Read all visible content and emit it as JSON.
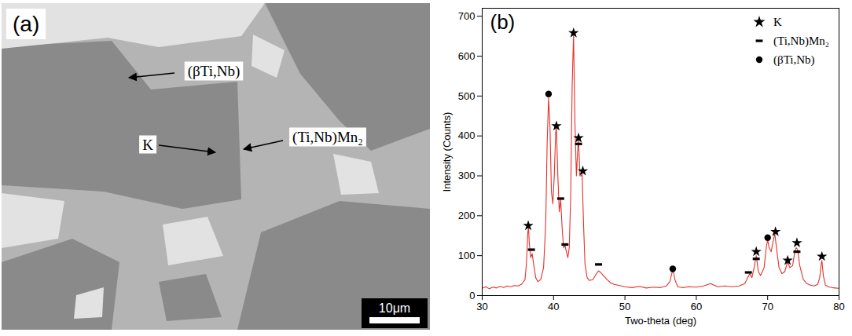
{
  "micrograph": {
    "panel_label": "(a)",
    "labels": [
      "(βTi,Nb)",
      "K",
      "(Ti,Nb)Mn₂"
    ],
    "scale_bar": "10μm"
  },
  "chart_data": {
    "type": "line",
    "panel_label": "(b)",
    "xlabel": "Two-theta (deg)",
    "ylabel": "Intensity (Counts)",
    "xlim": [
      30,
      80
    ],
    "xticks": [
      30,
      40,
      50,
      60,
      70,
      80
    ],
    "ylim": [
      0,
      720
    ],
    "yticks": [
      0,
      100,
      200,
      300,
      400,
      500,
      600,
      700
    ],
    "legend": "top-right",
    "series": [
      {
        "type": "line",
        "color": "#e8302a",
        "x": [
          30,
          30.5,
          31,
          31.5,
          32,
          32.5,
          33,
          33.5,
          34,
          34.5,
          35,
          35.5,
          36,
          36.2,
          36.4,
          36.5,
          36.6,
          36.8,
          37.0,
          37.2,
          37.5,
          37.8,
          38.2,
          38.6,
          38.9,
          39.1,
          39.3,
          39.5,
          39.7,
          39.9,
          40.1,
          40.3,
          40.4,
          40.6,
          40.8,
          41.0,
          41.2,
          41.4,
          41.6,
          41.8,
          42.0,
          42.2,
          42.4,
          42.6,
          42.8,
          43.0,
          43.2,
          43.4,
          43.5,
          43.7,
          43.9,
          44.0,
          44.2,
          44.4,
          44.7,
          45.0,
          45.5,
          46.0,
          46.3,
          46.6,
          47.0,
          47.5,
          48,
          48.5,
          49,
          49.5,
          50,
          51,
          52,
          53,
          54,
          55,
          55.8,
          56.3,
          56.6,
          56.8,
          57.0,
          57.4,
          58,
          59,
          60,
          61,
          62,
          62.5,
          63,
          64,
          65,
          66,
          66.8,
          67.2,
          67.5,
          67.8,
          68.1,
          68.4,
          68.7,
          69.0,
          69.5,
          69.8,
          70.0,
          70.2,
          70.5,
          70.8,
          71.0,
          71.3,
          71.6,
          72.0,
          72.4,
          72.8,
          73.1,
          73.5,
          73.8,
          74.0,
          74.2,
          74.5,
          75.0,
          75.5,
          76,
          76.5,
          77,
          77.3,
          77.5,
          77.6,
          77.8,
          78.1,
          78.5,
          79,
          79.5,
          80
        ],
        "values": [
          18,
          22,
          17,
          21,
          19,
          23,
          20,
          24,
          22,
          25,
          24,
          28,
          40,
          80,
          160,
          170,
          130,
          95,
          105,
          80,
          45,
          35,
          40,
          70,
          180,
          380,
          495,
          420,
          260,
          230,
          300,
          410,
          420,
          300,
          210,
          240,
          170,
          120,
          125,
          110,
          95,
          120,
          250,
          520,
          655,
          430,
          300,
          370,
          390,
          300,
          300,
          305,
          180,
          80,
          45,
          38,
          40,
          55,
          62,
          58,
          50,
          40,
          32,
          28,
          26,
          24,
          22,
          20,
          23,
          19,
          21,
          20,
          24,
          35,
          58,
          60,
          40,
          22,
          20,
          22,
          21,
          24,
          30,
          26,
          22,
          24,
          22,
          24,
          30,
          45,
          55,
          45,
          70,
          100,
          60,
          50,
          70,
          120,
          140,
          120,
          110,
          140,
          155,
          110,
          70,
          55,
          60,
          85,
          70,
          75,
          110,
          120,
          115,
          75,
          40,
          30,
          26,
          24,
          28,
          45,
          80,
          88,
          50,
          26,
          22,
          20,
          19,
          18
        ]
      },
      {
        "name": "K",
        "type": "scatter",
        "marker": "star",
        "color": "#000000",
        "x": [
          36.45,
          40.4,
          42.8,
          43.5,
          44.1,
          68.4,
          71.1,
          72.8,
          74.1,
          77.6
        ],
        "values": [
          175,
          425,
          658,
          395,
          312,
          110,
          160,
          88,
          132,
          98
        ]
      },
      {
        "name": "(Ti,Nb)Mn₂",
        "type": "scatter",
        "marker": "dash",
        "color": "#000000",
        "x": [
          36.9,
          41.0,
          41.6,
          43.5,
          46.3,
          67.3,
          68.4,
          74.1
        ],
        "values": [
          115,
          243,
          128,
          380,
          78,
          58,
          92,
          110
        ]
      },
      {
        "name": "(βTi,Nb)",
        "type": "scatter",
        "marker": "circle",
        "color": "#000000",
        "x": [
          39.3,
          56.7,
          70.0
        ],
        "values": [
          505,
          67,
          145
        ]
      }
    ]
  }
}
